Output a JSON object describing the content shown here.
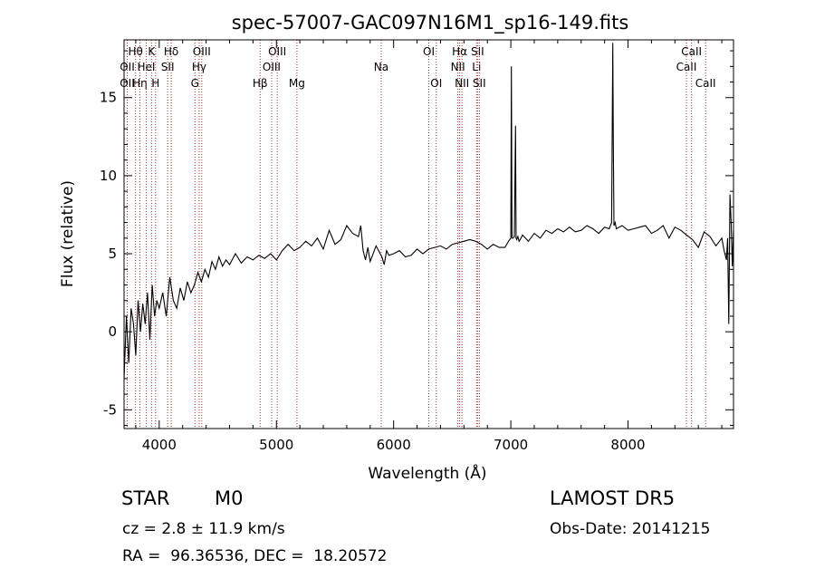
{
  "chart_data": {
    "type": "line",
    "title": "spec-57007-GAC097N16M1_sp16-149.fits",
    "xlabel": "Wavelength (Å)",
    "ylabel": "Flux (relative)",
    "xlim": [
      3700,
      8900
    ],
    "ylim": [
      -6.2,
      18.7
    ],
    "xticks": [
      4000,
      5000,
      6000,
      7000,
      8000
    ],
    "yticks": [
      -5,
      0,
      5,
      10,
      15
    ],
    "grid": false,
    "line_color": "#000000",
    "marker_color": "#a03030",
    "spectrum": {
      "x": [
        3700,
        3720,
        3740,
        3760,
        3780,
        3800,
        3820,
        3840,
        3860,
        3880,
        3900,
        3920,
        3940,
        3960,
        3980,
        4000,
        4030,
        4060,
        4090,
        4120,
        4150,
        4180,
        4210,
        4240,
        4270,
        4300,
        4330,
        4360,
        4390,
        4420,
        4450,
        4480,
        4510,
        4540,
        4570,
        4600,
        4650,
        4700,
        4750,
        4800,
        4850,
        4900,
        4950,
        5000,
        5050,
        5100,
        5150,
        5200,
        5250,
        5300,
        5350,
        5400,
        5450,
        5500,
        5550,
        5600,
        5650,
        5700,
        5720,
        5740,
        5760,
        5780,
        5800,
        5850,
        5900,
        5920,
        5940,
        5960,
        6000,
        6050,
        6100,
        6150,
        6200,
        6250,
        6300,
        6350,
        6400,
        6450,
        6500,
        6550,
        6600,
        6650,
        6700,
        6750,
        6800,
        6850,
        6900,
        6950,
        6980,
        7000,
        7005,
        7010,
        7020,
        7030,
        7040,
        7045,
        7050,
        7060,
        7070,
        7080,
        7100,
        7150,
        7200,
        7250,
        7300,
        7350,
        7400,
        7450,
        7500,
        7550,
        7600,
        7650,
        7700,
        7750,
        7800,
        7840,
        7860,
        7870,
        7875,
        7880,
        7890,
        7900,
        7950,
        8000,
        8050,
        8100,
        8150,
        8200,
        8250,
        8300,
        8350,
        8400,
        8450,
        8500,
        8550,
        8600,
        8650,
        8700,
        8750,
        8800,
        8820,
        8840,
        8850,
        8860,
        8870,
        8880,
        8890,
        8900
      ],
      "y": [
        -3.0,
        1.0,
        -2.0,
        1.5,
        0.5,
        -1.5,
        2.0,
        0.0,
        1.8,
        0.5,
        2.5,
        -0.5,
        3.0,
        1.0,
        2.0,
        1.5,
        2.5,
        1.0,
        3.5,
        2.0,
        1.5,
        2.8,
        2.0,
        3.2,
        2.5,
        3.0,
        3.8,
        3.2,
        4.0,
        3.5,
        4.5,
        4.0,
        4.8,
        4.2,
        4.6,
        4.3,
        5.0,
        4.4,
        4.8,
        4.6,
        4.9,
        4.7,
        5.0,
        4.6,
        5.2,
        5.6,
        5.2,
        5.4,
        5.8,
        5.5,
        6.0,
        5.3,
        6.5,
        5.6,
        5.9,
        6.8,
        6.3,
        6.1,
        6.8,
        5.2,
        4.6,
        5.4,
        4.5,
        5.5,
        4.8,
        4.3,
        5.2,
        4.9,
        5.0,
        5.2,
        4.8,
        4.9,
        5.3,
        5.0,
        5.3,
        5.4,
        5.5,
        5.3,
        5.6,
        5.7,
        5.8,
        5.9,
        5.8,
        5.6,
        5.3,
        5.6,
        5.4,
        5.4,
        5.8,
        6.0,
        17.0,
        6.0,
        6.0,
        6.1,
        13.2,
        6.0,
        5.9,
        6.1,
        5.8,
        5.9,
        6.2,
        5.8,
        6.3,
        6.0,
        6.5,
        6.3,
        6.6,
        6.4,
        6.7,
        6.4,
        6.5,
        6.8,
        6.6,
        6.3,
        6.7,
        6.6,
        7.0,
        18.5,
        12.0,
        6.8,
        7.0,
        6.6,
        6.8,
        6.5,
        6.6,
        6.7,
        6.8,
        6.3,
        6.5,
        6.8,
        6.0,
        6.7,
        6.5,
        6.2,
        5.9,
        5.4,
        6.4,
        6.1,
        5.5,
        6.0,
        5.2,
        4.6,
        6.0,
        0.5,
        8.8,
        7.0,
        4.2,
        6.5
      ]
    },
    "lines": [
      {
        "name": "Hθ",
        "wl": 3798,
        "row": 0
      },
      {
        "name": "OII",
        "wl": 3727,
        "row": 1
      },
      {
        "name": "OII",
        "wl": 3727,
        "row": 2
      },
      {
        "name": "Hη",
        "wl": 3835,
        "row": 2
      },
      {
        "name": "HeI",
        "wl": 3889,
        "row": 1
      },
      {
        "name": "K",
        "wl": 3934,
        "row": 0
      },
      {
        "name": "H",
        "wl": 3969,
        "row": 2
      },
      {
        "name": "Hδ",
        "wl": 4102,
        "row": 0
      },
      {
        "name": "SII",
        "wl": 4072,
        "row": 1
      },
      {
        "name": "Hγ",
        "wl": 4341,
        "row": 1
      },
      {
        "name": "G",
        "wl": 4305,
        "row": 2
      },
      {
        "name": "OIII",
        "wl": 4363,
        "row": 0
      },
      {
        "name": "Hβ",
        "wl": 4861,
        "row": 2
      },
      {
        "name": "OIII",
        "wl": 4959,
        "row": 1
      },
      {
        "name": "OIII",
        "wl": 5007,
        "row": 0
      },
      {
        "name": "Mg",
        "wl": 5175,
        "row": 2
      },
      {
        "name": "Na",
        "wl": 5894,
        "row": 1
      },
      {
        "name": "OI",
        "wl": 6300,
        "row": 0
      },
      {
        "name": "OI",
        "wl": 6364,
        "row": 2
      },
      {
        "name": "NII",
        "wl": 6548,
        "row": 1
      },
      {
        "name": "Hα",
        "wl": 6563,
        "row": 0
      },
      {
        "name": "NII",
        "wl": 6583,
        "row": 2
      },
      {
        "name": "SII",
        "wl": 6716,
        "row": 0
      },
      {
        "name": "Li",
        "wl": 6708,
        "row": 1
      },
      {
        "name": "SII",
        "wl": 6731,
        "row": 2
      },
      {
        "name": "CaII",
        "wl": 8498,
        "row": 1
      },
      {
        "name": "CaII",
        "wl": 8542,
        "row": 0
      },
      {
        "name": "CaII",
        "wl": 8662,
        "row": 2
      }
    ]
  },
  "info": {
    "class": "STAR",
    "subclass": "M0",
    "survey": "LAMOST DR5",
    "cz": "cz = 2.8 ± 11.9 km/s",
    "obs_date": "Obs-Date: 20141215",
    "radec": "RA =  96.36536, DEC =  18.20572"
  }
}
